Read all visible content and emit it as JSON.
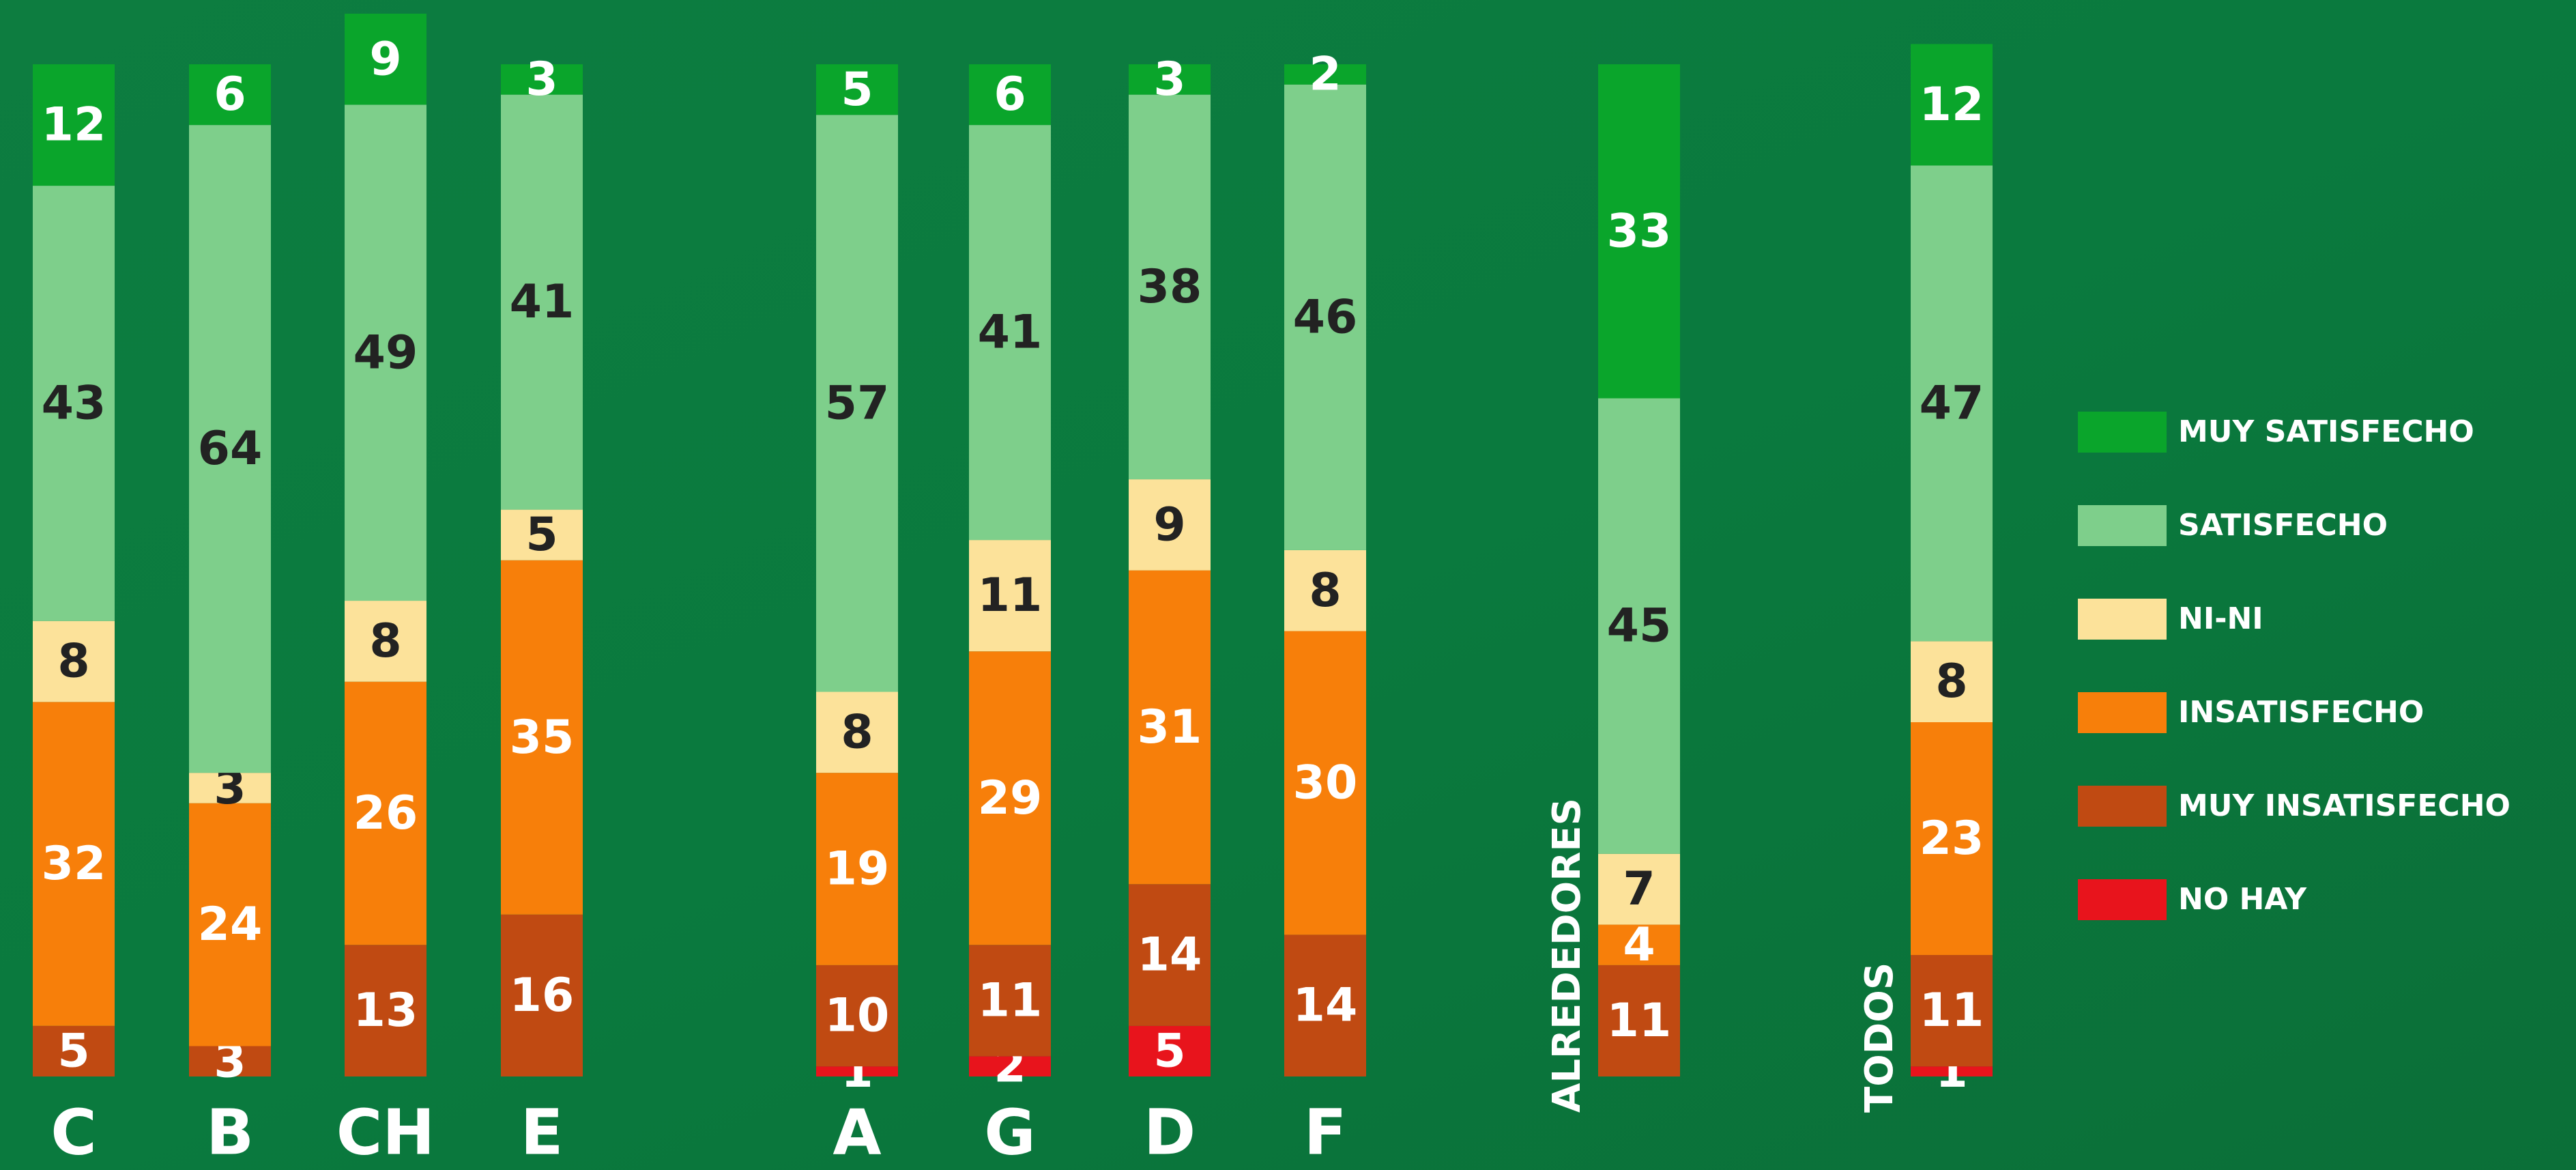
{
  "chart_data": {
    "type": "stacked_bar",
    "categories": [
      "C",
      "B",
      "CH",
      "E",
      "A",
      "G",
      "D",
      "F",
      "ALREDEDORES",
      "TODOS"
    ],
    "series": [
      {
        "name": "NO HAY",
        "color": "#e8141c",
        "values": [
          0,
          0,
          0,
          0,
          1,
          2,
          5,
          0,
          0,
          1
        ]
      },
      {
        "name": "MUY INSATISFECHO",
        "color": "#c04a12",
        "values": [
          5,
          3,
          13,
          16,
          10,
          11,
          14,
          14,
          11,
          11
        ]
      },
      {
        "name": "INSATISFECHO",
        "color": "#f77f0a",
        "values": [
          32,
          24,
          26,
          35,
          19,
          29,
          31,
          30,
          4,
          23
        ]
      },
      {
        "name": "NI-NI",
        "color": "#fce29a",
        "values": [
          8,
          3,
          8,
          5,
          8,
          11,
          9,
          8,
          7,
          8
        ]
      },
      {
        "name": "SATISFECHO",
        "color": "#7ecf8b",
        "values": [
          43,
          64,
          49,
          41,
          57,
          41,
          38,
          46,
          45,
          47
        ]
      },
      {
        "name": "MUY SATISFECHO",
        "color": "#0aa52b",
        "values": [
          12,
          6,
          9,
          3,
          5,
          6,
          3,
          2,
          33,
          12
        ]
      }
    ],
    "legend": "right"
  }
}
